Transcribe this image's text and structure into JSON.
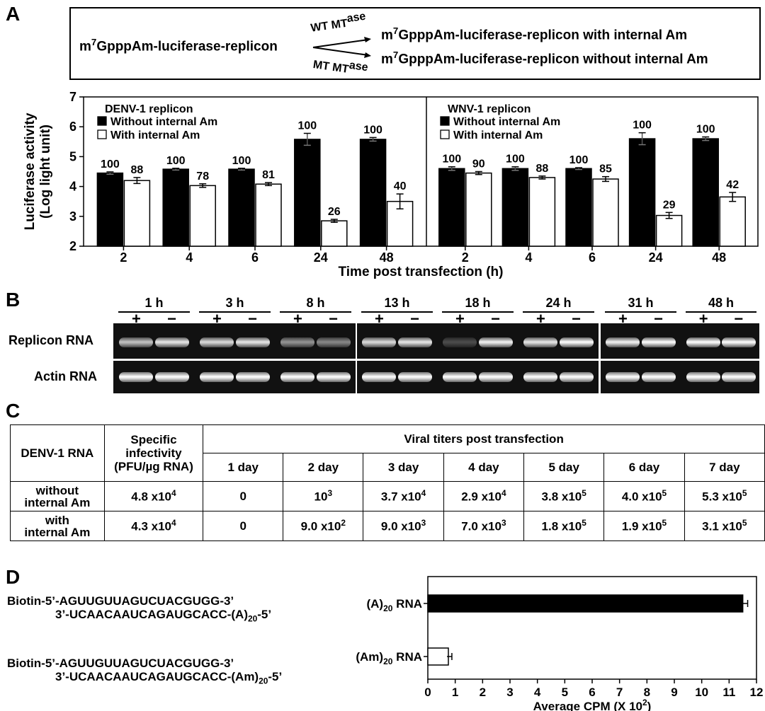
{
  "panel_labels": {
    "a": "A",
    "b": "B",
    "c": "C",
    "d": "D"
  },
  "scheme": {
    "left": [
      "m",
      "7",
      "GpppAm-luciferase-replicon"
    ],
    "wt": [
      "WT MT",
      "ase"
    ],
    "mt": [
      "MT MT",
      "ase"
    ],
    "right_top": [
      "m",
      "7",
      "GpppAm-luciferase-replicon with internal Am"
    ],
    "right_bottom": [
      "m",
      "7",
      "GpppAm-luciferase-replicon without internal Am"
    ]
  },
  "colors": {
    "filled_bar": "#000000",
    "open_bar": "#ffffff",
    "gel_bg": "#111111"
  },
  "chart_data": [
    {
      "type": "bar",
      "ylabel": "Luciferase activity\n(Log light unit)",
      "xlabel": "Time post transfection (h)",
      "ylim": [
        2,
        7
      ],
      "yticks": [
        2,
        3,
        4,
        5,
        6,
        7
      ],
      "panels": [
        {
          "legend_title": "DENV-1 replicon",
          "categories": [
            "2",
            "4",
            "6",
            "24",
            "48"
          ],
          "series": [
            {
              "name": "Without internal Am",
              "fill": "#000000",
              "values": [
                4.45,
                4.58,
                4.58,
                5.58,
                5.58
              ],
              "errors": [
                0.04,
                0.03,
                0.03,
                0.2,
                0.06
              ],
              "labels": [
                "100",
                "100",
                "100",
                "100",
                "100"
              ]
            },
            {
              "name": "With internal Am",
              "fill": "#ffffff",
              "values": [
                4.2,
                4.03,
                4.08,
                2.85,
                3.5
              ],
              "errors": [
                0.1,
                0.06,
                0.05,
                0.05,
                0.25
              ],
              "labels": [
                "88",
                "78",
                "81",
                "26",
                "40"
              ]
            }
          ]
        },
        {
          "legend_title": "WNV-1 replicon",
          "categories": [
            "2",
            "4",
            "6",
            "24",
            "48"
          ],
          "series": [
            {
              "name": "Without internal Am",
              "fill": "#000000",
              "values": [
                4.6,
                4.6,
                4.6,
                5.6,
                5.6
              ],
              "errors": [
                0.06,
                0.06,
                0.03,
                0.2,
                0.06
              ],
              "labels": [
                "100",
                "100",
                "100",
                "100",
                "100"
              ]
            },
            {
              "name": "With internal Am",
              "fill": "#ffffff",
              "values": [
                4.45,
                4.3,
                4.25,
                3.03,
                3.65
              ],
              "errors": [
                0.05,
                0.05,
                0.08,
                0.1,
                0.15
              ],
              "labels": [
                "90",
                "88",
                "85",
                "29",
                "42"
              ]
            }
          ]
        }
      ]
    },
    {
      "type": "bar",
      "orientation": "horizontal",
      "xlabel": [
        "Average CPM (X 10",
        "2",
        ")"
      ],
      "xlim": [
        0,
        12
      ],
      "xticks": [
        0,
        1,
        2,
        3,
        4,
        5,
        6,
        7,
        8,
        9,
        10,
        11,
        12
      ],
      "categories": [
        [
          "(A)",
          "20",
          " RNA"
        ],
        [
          "(Am)",
          "20",
          " RNA"
        ]
      ],
      "values": [
        11.5,
        0.75
      ],
      "errors": [
        0.1,
        0.05
      ],
      "fills": [
        "#000000",
        "#ffffff"
      ]
    }
  ],
  "gel": {
    "timepoints": [
      "1 h",
      "3 h",
      "8 h",
      "13 h",
      "18 h",
      "24 h",
      "31 h",
      "48 h"
    ],
    "plus": "+",
    "minus": "−",
    "row_labels": [
      "Replicon RNA",
      "Actin RNA"
    ],
    "replicon_band_intensity": [
      0.75,
      0.9,
      0.85,
      0.9,
      0.55,
      0.5,
      0.85,
      0.9,
      0.25,
      0.95,
      0.9,
      1.0,
      0.95,
      1.0,
      1.0,
      1.0
    ]
  },
  "table": {
    "col_header": "DENV-1 RNA",
    "spec_header": [
      "Specific",
      "infectivity",
      "(PFU/µg RNA)"
    ],
    "titer_header": "Viral titers post transfection",
    "days": [
      "1 day",
      "2 day",
      "3 day",
      "4 day",
      "5 day",
      "6 day",
      "7 day"
    ],
    "rows": [
      {
        "label": [
          "without",
          "internal Am"
        ],
        "spec": [
          "4.8 x10",
          "4"
        ],
        "titers": [
          [
            "0",
            ""
          ],
          [
            "10",
            "3"
          ],
          [
            "3.7 x10",
            "4"
          ],
          [
            "2.9 x10",
            "4"
          ],
          [
            "3.8 x10",
            "5"
          ],
          [
            "4.0 x10",
            "5"
          ],
          [
            "5.3 x10",
            "5"
          ]
        ]
      },
      {
        "label": [
          "with",
          "internal Am"
        ],
        "spec": [
          "4.3 x10",
          "4"
        ],
        "titers": [
          [
            "0",
            ""
          ],
          [
            "9.0 x10",
            "2"
          ],
          [
            "9.0 x10",
            "3"
          ],
          [
            "7.0 x10",
            "3"
          ],
          [
            "1.8 x10",
            "5"
          ],
          [
            "1.9 x10",
            "5"
          ],
          [
            "3.1 x10",
            "5"
          ]
        ]
      }
    ]
  },
  "panel_d": {
    "seq1_top": "Biotin-5’-AGUUGUUAGUCUACGUGG-3’",
    "seq1_bottom": [
      "3’-UCAACAAUCAGAUGCACC-(A)",
      "20",
      "-5’"
    ],
    "seq2_top": "Biotin-5’-AGUUGUUAGUCUACGUGG-3’",
    "seq2_bottom": [
      "3’-UCAACAAUCAGAUGCACC-(Am)",
      "20",
      "-5’"
    ]
  }
}
